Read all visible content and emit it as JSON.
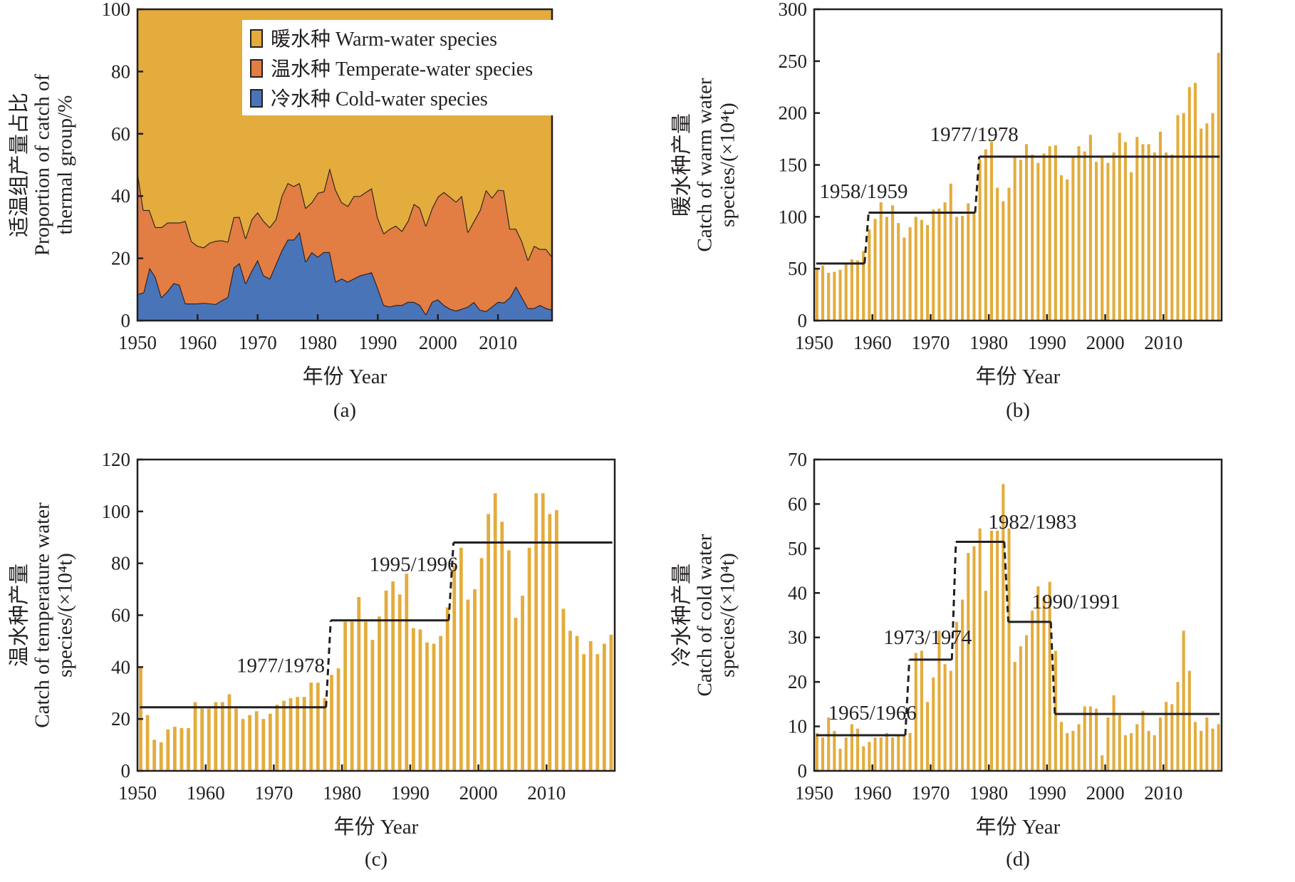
{
  "figure": {
    "colors": {
      "warm": "#e3ac3c",
      "temperate": "#e27d44",
      "cold": "#4a74b8",
      "bar": "#e3ac3c",
      "axis": "#231f20"
    }
  },
  "chart_data": [
    {
      "id": "a",
      "type": "area",
      "stacked": true,
      "caption": "(a)",
      "title": "",
      "xlabel": "年份  Year",
      "ylabel_lines": [
        "适温组产量占比",
        "Proportion of catch of",
        "thermal group/%"
      ],
      "xlim": [
        1950,
        2019
      ],
      "ylim": [
        0,
        100
      ],
      "xticks": [
        1950,
        1960,
        1970,
        1980,
        1990,
        2000,
        2010
      ],
      "yticks": [
        0,
        20,
        40,
        60,
        80,
        100
      ],
      "legend_position": "top-right",
      "legend": [
        "暖水种 Warm-water species",
        "温水种 Temperate-water species",
        "冷水种 Cold-water species"
      ],
      "x": [
        1950,
        1951,
        1952,
        1953,
        1954,
        1955,
        1956,
        1957,
        1958,
        1959,
        1960,
        1961,
        1962,
        1963,
        1964,
        1965,
        1966,
        1967,
        1968,
        1969,
        1970,
        1971,
        1972,
        1973,
        1974,
        1975,
        1976,
        1977,
        1978,
        1979,
        1980,
        1981,
        1982,
        1983,
        1984,
        1985,
        1986,
        1987,
        1988,
        1989,
        1990,
        1991,
        1992,
        1993,
        1994,
        1995,
        1996,
        1997,
        1998,
        1999,
        2000,
        2001,
        2002,
        2003,
        2004,
        2005,
        2006,
        2007,
        2008,
        2009,
        2010,
        2011,
        2012,
        2013,
        2014,
        2015,
        2016,
        2017,
        2018,
        2019
      ],
      "series": [
        {
          "name": "冷水种 Cold-water species",
          "key": "cold",
          "values": [
            8.5,
            9,
            17,
            14,
            7.5,
            9.5,
            12,
            11.5,
            5.5,
            5.5,
            5.5,
            5.7,
            5.5,
            5.3,
            6.5,
            7.5,
            17,
            18.5,
            12,
            16,
            19.5,
            14.5,
            13.5,
            18,
            22.5,
            26,
            26,
            28.5,
            19,
            22,
            20.5,
            22,
            22,
            12.5,
            13.5,
            12.5,
            13.5,
            14.5,
            15,
            15.5,
            10.5,
            5,
            4.5,
            5,
            5,
            6,
            6,
            5,
            2,
            6,
            6.8,
            5,
            3.8,
            3.2,
            3.8,
            4.5,
            6,
            3.5,
            3,
            4.5,
            6,
            5.8,
            7.5,
            11,
            7.5,
            4,
            4,
            5,
            4,
            3.5
          ]
        },
        {
          "name": "温水种 Temperate-water species",
          "key": "temperate",
          "values": [
            39.5,
            26.5,
            18.5,
            16,
            22.5,
            22,
            19.5,
            20,
            26.5,
            20,
            18.5,
            17.8,
            19.5,
            20.3,
            19.3,
            17.8,
            16.2,
            14.8,
            14.5,
            16.5,
            15.3,
            17.5,
            16.5,
            14.5,
            17.5,
            18.2,
            17.2,
            15.7,
            17.2,
            16,
            20.5,
            19.5,
            27,
            29.5,
            24.5,
            24.3,
            26.5,
            25.5,
            26.3,
            27,
            22.5,
            23,
            25,
            25.5,
            23.8,
            26,
            31.5,
            31.2,
            28.5,
            30,
            33,
            36.3,
            36,
            35,
            36.3,
            24,
            26,
            32,
            39,
            35,
            36,
            36,
            22,
            18.5,
            18,
            15.5,
            20,
            18,
            19,
            17
          ]
        },
        {
          "name": "暖水种 Warm-water species",
          "key": "warm",
          "values": [
            52,
            64.5,
            64.5,
            70,
            70,
            68.5,
            68.5,
            68.5,
            68,
            74.5,
            76,
            76.5,
            75,
            74.4,
            74.2,
            74.7,
            66.8,
            66.7,
            73.5,
            67.5,
            65.2,
            68,
            70,
            67.5,
            60,
            55.8,
            56.8,
            55.8,
            63.8,
            62,
            59,
            58.5,
            51,
            58,
            62,
            63.2,
            60,
            60,
            58.7,
            57.5,
            67,
            72,
            70.5,
            69.5,
            71.2,
            68,
            62.5,
            63.8,
            69.5,
            64,
            60.2,
            58.7,
            60.2,
            61.8,
            59.9,
            71.5,
            68,
            64.5,
            58,
            60.5,
            58,
            58.2,
            70.5,
            70.5,
            74.5,
            80.5,
            76,
            77,
            77,
            79.5
          ]
        }
      ]
    },
    {
      "id": "b",
      "type": "bar",
      "caption": "(b)",
      "title": "",
      "xlabel": "年份  Year",
      "ylabel_lines": [
        "暖水种产量",
        "Catch of warm water",
        "species/(×10⁴t)"
      ],
      "xlim": [
        1950,
        2019
      ],
      "ylim": [
        0,
        300
      ],
      "xticks": [
        1950,
        1960,
        1970,
        1980,
        1990,
        2000,
        2010
      ],
      "yticks": [
        0,
        50,
        100,
        150,
        200,
        250,
        300
      ],
      "x_start": 1950,
      "values": [
        51,
        53,
        46,
        47,
        49,
        54,
        59,
        58,
        67,
        88,
        98,
        114,
        100,
        111,
        94,
        80,
        90,
        100,
        97,
        92,
        107,
        108,
        114,
        132,
        100,
        101,
        113,
        103,
        155,
        165,
        172,
        128,
        115,
        128,
        158,
        155,
        170,
        160,
        152,
        161,
        168,
        169,
        140,
        136,
        158,
        168,
        163,
        179,
        153,
        157,
        152,
        162,
        181,
        172,
        143,
        177,
        170,
        170,
        162,
        182,
        162,
        160,
        198,
        200,
        225,
        229,
        185,
        190,
        200,
        258
      ],
      "step_levels": [
        {
          "from": 1950,
          "to": 1958,
          "value": 55
        },
        {
          "from": 1959,
          "to": 1977,
          "value": 104
        },
        {
          "from": 1978,
          "to": 2019,
          "value": 158
        }
      ],
      "annotations": [
        "1958/1959",
        "1977/1978"
      ]
    },
    {
      "id": "c",
      "type": "bar",
      "caption": "(c)",
      "title": "",
      "xlabel": "年份  Year",
      "ylabel_lines": [
        "温水种产量",
        "Catch of temperature water",
        "species/(×10⁴t)"
      ],
      "xlim": [
        1950,
        2019
      ],
      "ylim": [
        0,
        120
      ],
      "xticks": [
        1950,
        1960,
        1970,
        1980,
        1990,
        2000,
        2010
      ],
      "yticks": [
        0,
        20,
        40,
        60,
        80,
        100,
        120
      ],
      "x_start": 1950,
      "values": [
        40,
        21.5,
        12,
        11,
        16,
        17,
        16.5,
        16.5,
        26.5,
        24,
        24,
        26.5,
        26.5,
        29.5,
        24,
        20,
        21.5,
        23,
        20,
        22,
        25.5,
        27,
        28,
        28.5,
        28.5,
        34,
        34,
        28,
        37,
        39.5,
        57.5,
        57.5,
        67,
        57.5,
        50.5,
        59.5,
        69.5,
        73,
        68,
        76,
        55,
        54.5,
        49.5,
        49,
        52,
        63,
        79,
        86,
        66,
        70,
        82,
        99,
        107,
        96,
        85,
        59,
        67.5,
        86,
        107,
        107,
        99,
        100.5,
        62.5,
        54,
        52,
        45,
        50,
        45,
        49,
        52.5
      ],
      "step_levels": [
        {
          "from": 1950,
          "to": 1977,
          "value": 24.5
        },
        {
          "from": 1978,
          "to": 1995,
          "value": 58
        },
        {
          "from": 1996,
          "to": 2019,
          "value": 88
        }
      ],
      "annotations": [
        "1977/1978",
        "1995/1996"
      ]
    },
    {
      "id": "d",
      "type": "bar",
      "caption": "(d)",
      "title": "",
      "xlabel": "年份  Year",
      "ylabel_lines": [
        "冷水种产量",
        "Catch of cold water",
        "species/(×10⁴t)"
      ],
      "xlim": [
        1950,
        2019
      ],
      "ylim": [
        0,
        70
      ],
      "xticks": [
        1950,
        1960,
        1970,
        1980,
        1990,
        2000,
        2010
      ],
      "yticks": [
        0,
        10,
        20,
        30,
        40,
        50,
        60,
        70
      ],
      "x_start": 1950,
      "values": [
        8.5,
        7.5,
        12,
        9,
        5,
        7.5,
        10.5,
        9.5,
        5.5,
        6.5,
        7.5,
        7.5,
        8.5,
        7.5,
        8,
        8,
        8.5,
        26.5,
        27,
        15.5,
        21,
        31.5,
        24,
        22.5,
        33.5,
        38.5,
        49,
        50.5,
        54.5,
        40.5,
        54,
        54,
        64.5,
        54.5,
        24.5,
        28,
        30.5,
        36,
        41.5,
        39,
        42.5,
        27,
        11,
        8.5,
        9,
        10.5,
        14.5,
        14.5,
        14,
        3.5,
        12,
        17,
        12.5,
        8,
        8.5,
        10.5,
        13.5,
        9,
        8,
        12,
        15.5,
        15,
        20,
        31.5,
        22.5,
        11,
        9,
        12,
        9.5,
        10.5
      ],
      "step_levels": [
        {
          "from": 1950,
          "to": 1965,
          "value": 8
        },
        {
          "from": 1966,
          "to": 1973,
          "value": 25
        },
        {
          "from": 1974,
          "to": 1982,
          "value": 51.5
        },
        {
          "from": 1983,
          "to": 1990,
          "value": 33.5
        },
        {
          "from": 1991,
          "to": 2019,
          "value": 12.8
        }
      ],
      "annotations": [
        "1965/1966",
        "1973/1974",
        "1982/1983",
        "1990/1991"
      ]
    }
  ]
}
